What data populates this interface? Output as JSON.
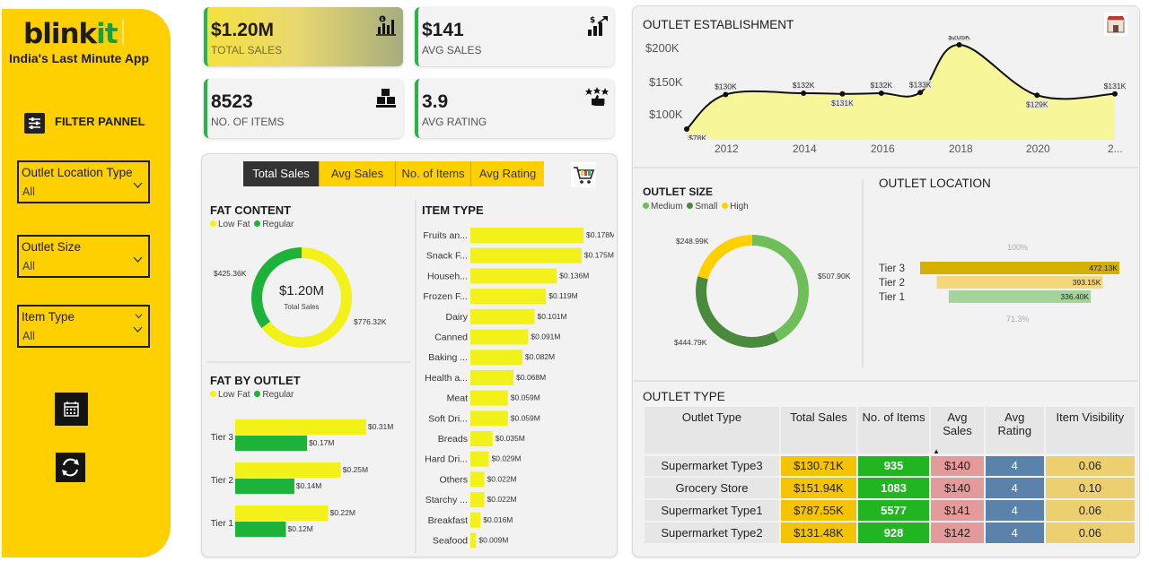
{
  "sidebar": {
    "logo_main": "blink",
    "logo_accent": "it",
    "tagline": "India's Last Minute App",
    "filter_label": "FILTER PANNEL",
    "slicers": [
      {
        "label": "Outlet Location Type",
        "value": "All"
      },
      {
        "label": "Outlet Size",
        "value": "All"
      },
      {
        "label": "Item Type",
        "value": "All"
      }
    ]
  },
  "kpis": [
    {
      "value": "$1.20M",
      "label": "TOTAL SALES",
      "icon": "bar-chart-icon"
    },
    {
      "value": "$141",
      "label": "AVG SALES",
      "icon": "dollar-growth-icon"
    },
    {
      "value": "8523",
      "label": "NO. OF ITEMS",
      "icon": "boxes-icon"
    },
    {
      "value": "3.9",
      "label": "AVG RATING",
      "icon": "rating-thumb-icon"
    }
  ],
  "tabs": [
    "Total Sales",
    "Avg Sales",
    "No. of Items",
    "Avg Rating"
  ],
  "fat_content": {
    "title": "FAT CONTENT",
    "legend": [
      "Low Fat",
      "Regular"
    ],
    "center_value": "$1.20M",
    "center_label": "Total Sales",
    "labels": [
      "$776.32K",
      "$425.36K"
    ]
  },
  "fat_by_outlet": {
    "title": "FAT BY OUTLET",
    "legend": [
      "Low Fat",
      "Regular"
    ]
  },
  "item_type": {
    "title": "ITEM TYPE"
  },
  "outlet_establishment": {
    "title": "OUTLET ESTABLISHMENT",
    "y_ticks": [
      "$200K",
      "$150K",
      "$100K"
    ],
    "x_ticks": [
      "2012",
      "2014",
      "2016",
      "2018",
      "2020",
      "2..."
    ]
  },
  "outlet_size": {
    "title": "OUTLET SIZE",
    "legend": [
      "Medium",
      "Small",
      "High"
    ],
    "labels": [
      "$507.90K",
      "$444.79K",
      "$248.99K"
    ]
  },
  "outlet_location": {
    "title": "OUTLET LOCATION",
    "top_pct": "100%",
    "bottom_pct": "71.3%"
  },
  "outlet_type": {
    "title": "OUTLET TYPE",
    "headers": [
      "Outlet Type",
      "Total Sales",
      "No. of Items",
      "Avg Sales",
      "Avg Rating",
      "Item Visibility"
    ],
    "rows": [
      [
        "Supermarket Type3",
        "$130.71K",
        "935",
        "$140",
        "4",
        "0.06"
      ],
      [
        "Grocery Store",
        "$151.94K",
        "1083",
        "$140",
        "4",
        "0.10"
      ],
      [
        "Supermarket Type1",
        "$787.55K",
        "5577",
        "$141",
        "4",
        "0.06"
      ],
      [
        "Supermarket Type2",
        "$131.48K",
        "928",
        "$142",
        "4",
        "0.06"
      ]
    ]
  },
  "colors": {
    "brand_yellow": "#ffd000",
    "low_fat": "#f2f21a",
    "regular": "#1db33a",
    "line_fill": "#f7f79a"
  },
  "chart_data": [
    {
      "type": "pie",
      "title": "FAT CONTENT",
      "categories": [
        "Low Fat",
        "Regular"
      ],
      "values": [
        776.32,
        425.36
      ],
      "unit": "K"
    },
    {
      "type": "bar",
      "title": "FAT BY OUTLET",
      "categories": [
        "Tier 3",
        "Tier 2",
        "Tier 1"
      ],
      "series": [
        {
          "name": "Low Fat",
          "values": [
            0.31,
            0.25,
            0.22
          ],
          "labels": [
            "$0.31M",
            "$0.25M",
            "$0.22M"
          ]
        },
        {
          "name": "Regular",
          "values": [
            0.17,
            0.14,
            0.12
          ],
          "labels": [
            "$0.17M",
            "$0.14M",
            "$0.12M"
          ]
        }
      ],
      "xlim": [
        0,
        0.35
      ]
    },
    {
      "type": "bar",
      "title": "ITEM TYPE",
      "categories": [
        "Fruits an...",
        "Snack F...",
        "Househ...",
        "Frozen F...",
        "Dairy",
        "Canned",
        "Baking ...",
        "Health a...",
        "Meat",
        "Soft Dri...",
        "Breads",
        "Hard Dri...",
        "Others",
        "Starchy ...",
        "Breakfast",
        "Seafood"
      ],
      "values": [
        0.178,
        0.175,
        0.136,
        0.119,
        0.101,
        0.091,
        0.082,
        0.068,
        0.059,
        0.059,
        0.035,
        0.029,
        0.022,
        0.022,
        0.016,
        0.009
      ],
      "labels": [
        "$0.178M",
        "$0.175M",
        "$0.136M",
        "$0.119M",
        "$0.101M",
        "$0.091M",
        "$0.082M",
        "$0.068M",
        "$0.059M",
        "$0.059M",
        "$0.035M",
        "$0.029M",
        "$0.022M",
        "$0.022M",
        "$0.016M",
        "$0.009M"
      ],
      "xlim": [
        0,
        0.18
      ]
    },
    {
      "type": "area",
      "title": "OUTLET ESTABLISHMENT",
      "x": [
        2011,
        2012,
        2014,
        2015,
        2016,
        2017,
        2018,
        2020,
        2022
      ],
      "values": [
        78,
        130,
        132,
        131,
        132,
        133,
        205,
        129,
        131
      ],
      "labels": [
        "$78K",
        "$130K",
        "$132K",
        "$131K",
        "$132K",
        "$133K",
        "$205K",
        "$129K",
        "$131K"
      ],
      "ylim": [
        75,
        215
      ],
      "xlim": [
        2011,
        2022
      ]
    },
    {
      "type": "pie",
      "title": "OUTLET SIZE",
      "categories": [
        "Medium",
        "Small",
        "High"
      ],
      "values": [
        507.9,
        444.79,
        248.99
      ],
      "unit": "K"
    },
    {
      "type": "bar",
      "title": "OUTLET LOCATION",
      "categories": [
        "Tier 3",
        "Tier 2",
        "Tier 1"
      ],
      "values": [
        472.13,
        393.15,
        336.4
      ],
      "labels": [
        "472.13K",
        "393.15K",
        "336.40K"
      ]
    }
  ]
}
